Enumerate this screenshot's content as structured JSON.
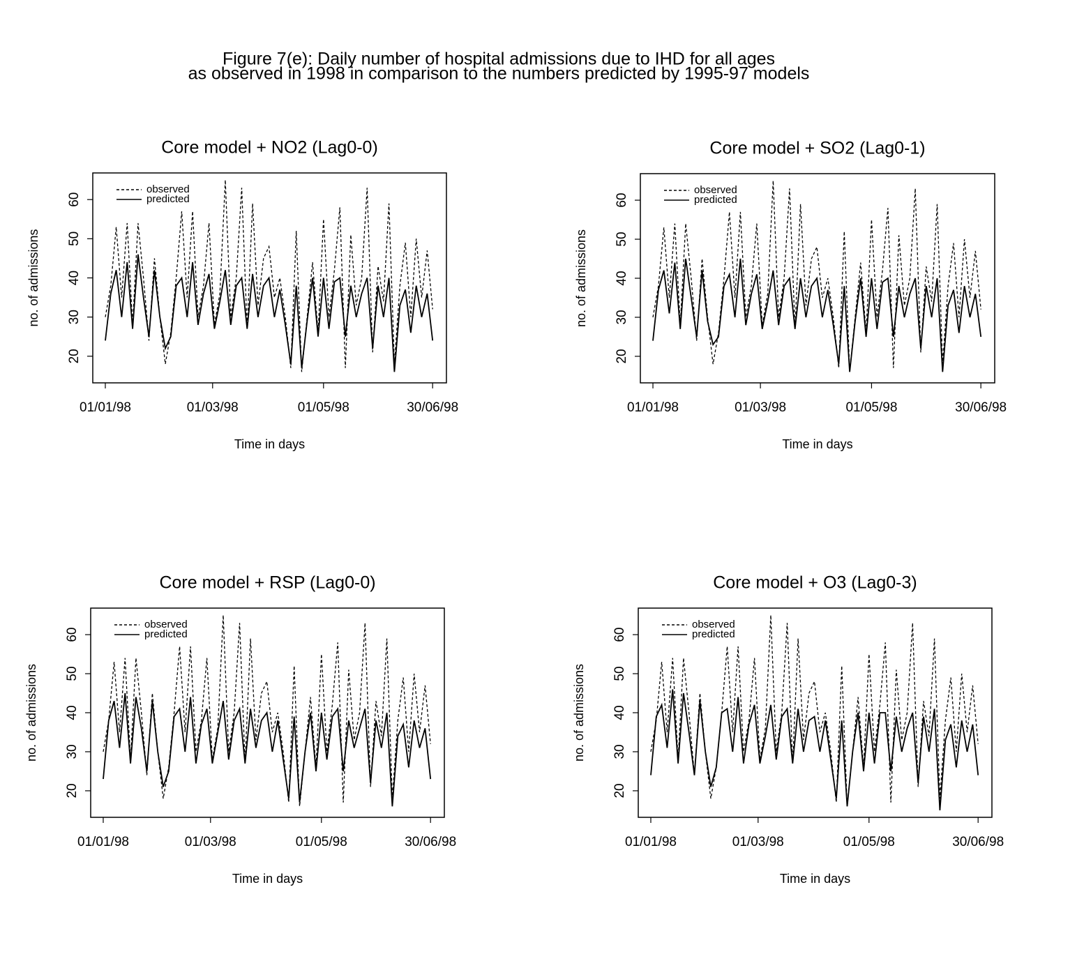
{
  "figure_title": [
    "Figure 7(e): Daily number of hospital admissions due to IHD for all ages",
    "as observed in 1998 in comparison to the numbers predicted by 1995-97 models"
  ],
  "chart_data": [
    {
      "type": "line",
      "title": "Core model + NO2 (Lag0-0)",
      "xlabel": "Time in days",
      "ylabel": "no. of admissions",
      "x": [
        0,
        3,
        6,
        9,
        12,
        15,
        18,
        21,
        24,
        27,
        30,
        33,
        36,
        39,
        42,
        45,
        48,
        51,
        54,
        57,
        60,
        63,
        66,
        69,
        72,
        75,
        78,
        81,
        84,
        87,
        90,
        93,
        96,
        99,
        102,
        105,
        108,
        111,
        114,
        117,
        120,
        123,
        126,
        129,
        132,
        135,
        138,
        141,
        144,
        147,
        150,
        153,
        156,
        159,
        162,
        165,
        168,
        171,
        174,
        177,
        180
      ],
      "series": [
        {
          "name": "observed",
          "color": "#000000",
          "line_style": "dashed",
          "values": [
            30,
            38,
            53,
            35,
            54,
            28,
            54,
            40,
            24,
            45,
            30,
            18,
            26,
            40,
            57,
            35,
            57,
            30,
            38,
            54,
            28,
            36,
            65,
            30,
            40,
            63,
            27,
            59,
            33,
            45,
            48,
            35,
            40,
            30,
            17,
            52,
            16,
            30,
            44,
            26,
            55,
            30,
            42,
            58,
            17,
            51,
            33,
            40,
            63,
            21,
            43,
            34,
            59,
            18,
            38,
            49,
            30,
            50,
            35,
            47,
            32
          ]
        },
        {
          "name": "predicted",
          "color": "#000000",
          "line_style": "solid",
          "values": [
            24,
            36,
            42,
            30,
            44,
            27,
            46,
            35,
            25,
            42,
            30,
            22,
            25,
            38,
            40,
            30,
            44,
            28,
            36,
            41,
            27,
            34,
            42,
            28,
            38,
            40,
            27,
            41,
            30,
            38,
            40,
            30,
            37,
            28,
            18,
            38,
            17,
            29,
            40,
            25,
            40,
            27,
            39,
            40,
            25,
            38,
            30,
            36,
            40,
            22,
            38,
            30,
            40,
            16,
            33,
            37,
            26,
            38,
            30,
            36,
            24
          ]
        }
      ],
      "xlim": [
        -6.9,
        187.6
      ],
      "ylim": [
        13.2,
        66.8
      ],
      "yticks": [
        20,
        30,
        40,
        50,
        60
      ],
      "xticks": [
        {
          "value": 0,
          "label": "01/01/98"
        },
        {
          "value": 59,
          "label": "01/03/98"
        },
        {
          "value": 120,
          "label": "01/05/98"
        },
        {
          "value": 180,
          "label": "30/06/98"
        }
      ],
      "legend": "upper left"
    },
    {
      "type": "line",
      "title": "Core model + SO2 (Lag0-1)",
      "xlabel": "Time in days",
      "ylabel": "no. of admissions",
      "x": [
        0,
        3,
        6,
        9,
        12,
        15,
        18,
        21,
        24,
        27,
        30,
        33,
        36,
        39,
        42,
        45,
        48,
        51,
        54,
        57,
        60,
        63,
        66,
        69,
        72,
        75,
        78,
        81,
        84,
        87,
        90,
        93,
        96,
        99,
        102,
        105,
        108,
        111,
        114,
        117,
        120,
        123,
        126,
        129,
        132,
        135,
        138,
        141,
        144,
        147,
        150,
        153,
        156,
        159,
        162,
        165,
        168,
        171,
        174,
        177,
        180
      ],
      "series": [
        {
          "name": "observed",
          "color": "#000000",
          "line_style": "dashed",
          "values": [
            30,
            38,
            53,
            35,
            54,
            28,
            54,
            40,
            24,
            45,
            30,
            18,
            26,
            40,
            57,
            35,
            57,
            30,
            38,
            54,
            28,
            36,
            65,
            30,
            40,
            63,
            27,
            59,
            33,
            45,
            48,
            35,
            40,
            30,
            17,
            52,
            16,
            30,
            44,
            26,
            55,
            30,
            42,
            58,
            17,
            51,
            33,
            40,
            63,
            21,
            43,
            34,
            59,
            18,
            38,
            49,
            30,
            50,
            35,
            47,
            32
          ]
        },
        {
          "name": "predicted",
          "color": "#000000",
          "line_style": "solid",
          "values": [
            24,
            37,
            42,
            31,
            44,
            27,
            45,
            35,
            25,
            42,
            29,
            23,
            25,
            38,
            41,
            30,
            45,
            28,
            36,
            41,
            27,
            34,
            42,
            28,
            38,
            40,
            27,
            40,
            30,
            38,
            40,
            30,
            37,
            28,
            18,
            38,
            16,
            29,
            40,
            25,
            40,
            27,
            39,
            40,
            25,
            38,
            30,
            36,
            40,
            22,
            38,
            30,
            40,
            16,
            33,
            37,
            26,
            38,
            30,
            36,
            25
          ]
        }
      ],
      "xlim": [
        -6.9,
        187.6
      ],
      "ylim": [
        13.2,
        66.8
      ],
      "yticks": [
        20,
        30,
        40,
        50,
        60
      ],
      "xticks": [
        {
          "value": 0,
          "label": "01/01/98"
        },
        {
          "value": 59,
          "label": "01/03/98"
        },
        {
          "value": 120,
          "label": "01/05/98"
        },
        {
          "value": 180,
          "label": "30/06/98"
        }
      ],
      "legend": "upper left"
    },
    {
      "type": "line",
      "title": "Core model + RSP (Lag0-0)",
      "xlabel": "Time in days",
      "ylabel": "no. of admissions",
      "x": [
        0,
        3,
        6,
        9,
        12,
        15,
        18,
        21,
        24,
        27,
        30,
        33,
        36,
        39,
        42,
        45,
        48,
        51,
        54,
        57,
        60,
        63,
        66,
        69,
        72,
        75,
        78,
        81,
        84,
        87,
        90,
        93,
        96,
        99,
        102,
        105,
        108,
        111,
        114,
        117,
        120,
        123,
        126,
        129,
        132,
        135,
        138,
        141,
        144,
        147,
        150,
        153,
        156,
        159,
        162,
        165,
        168,
        171,
        174,
        177,
        180
      ],
      "series": [
        {
          "name": "observed",
          "color": "#000000",
          "line_style": "dashed",
          "values": [
            30,
            38,
            53,
            35,
            54,
            28,
            54,
            40,
            24,
            45,
            30,
            18,
            26,
            40,
            57,
            35,
            57,
            30,
            38,
            54,
            28,
            36,
            65,
            30,
            40,
            63,
            27,
            59,
            33,
            45,
            48,
            35,
            40,
            30,
            17,
            52,
            16,
            30,
            44,
            26,
            55,
            30,
            42,
            58,
            17,
            51,
            33,
            40,
            63,
            21,
            43,
            34,
            59,
            18,
            38,
            49,
            30,
            50,
            35,
            47,
            32
          ]
        },
        {
          "name": "predicted",
          "color": "#000000",
          "line_style": "solid",
          "values": [
            23,
            38,
            43,
            31,
            45,
            27,
            44,
            36,
            25,
            43,
            30,
            21,
            25,
            39,
            41,
            30,
            44,
            27,
            37,
            41,
            27,
            35,
            43,
            28,
            38,
            41,
            27,
            41,
            31,
            38,
            40,
            30,
            38,
            28,
            18,
            39,
            17,
            30,
            40,
            25,
            40,
            28,
            39,
            41,
            25,
            38,
            31,
            36,
            41,
            22,
            38,
            31,
            40,
            16,
            34,
            37,
            26,
            38,
            31,
            36,
            23
          ]
        }
      ],
      "xlim": [
        -6.9,
        187.6
      ],
      "ylim": [
        13.2,
        66.8
      ],
      "yticks": [
        20,
        30,
        40,
        50,
        60
      ],
      "xticks": [
        {
          "value": 0,
          "label": "01/01/98"
        },
        {
          "value": 59,
          "label": "01/03/98"
        },
        {
          "value": 120,
          "label": "01/05/98"
        },
        {
          "value": 180,
          "label": "30/06/98"
        }
      ],
      "legend": "upper left"
    },
    {
      "type": "line",
      "title": "Core model + O3 (Lag0-3)",
      "xlabel": "Time in days",
      "ylabel": "no. of admissions",
      "x": [
        0,
        3,
        6,
        9,
        12,
        15,
        18,
        21,
        24,
        27,
        30,
        33,
        36,
        39,
        42,
        45,
        48,
        51,
        54,
        57,
        60,
        63,
        66,
        69,
        72,
        75,
        78,
        81,
        84,
        87,
        90,
        93,
        96,
        99,
        102,
        105,
        108,
        111,
        114,
        117,
        120,
        123,
        126,
        129,
        132,
        135,
        138,
        141,
        144,
        147,
        150,
        153,
        156,
        159,
        162,
        165,
        168,
        171,
        174,
        177,
        180
      ],
      "series": [
        {
          "name": "observed",
          "color": "#000000",
          "line_style": "dashed",
          "values": [
            30,
            38,
            53,
            35,
            54,
            28,
            54,
            40,
            24,
            45,
            30,
            18,
            26,
            40,
            57,
            35,
            57,
            30,
            38,
            54,
            28,
            36,
            65,
            30,
            40,
            63,
            27,
            59,
            33,
            45,
            48,
            35,
            40,
            30,
            17,
            52,
            16,
            30,
            44,
            26,
            55,
            30,
            42,
            58,
            17,
            51,
            33,
            40,
            63,
            21,
            43,
            34,
            59,
            18,
            38,
            49,
            30,
            50,
            35,
            47,
            32
          ]
        },
        {
          "name": "predicted",
          "color": "#000000",
          "line_style": "solid",
          "values": [
            24,
            39,
            42,
            31,
            46,
            27,
            45,
            35,
            24,
            43,
            30,
            21,
            26,
            40,
            41,
            30,
            44,
            27,
            37,
            42,
            27,
            34,
            42,
            28,
            39,
            41,
            27,
            41,
            30,
            38,
            39,
            30,
            38,
            28,
            18,
            38,
            16,
            30,
            40,
            25,
            40,
            27,
            40,
            40,
            25,
            39,
            30,
            36,
            40,
            22,
            39,
            30,
            41,
            15,
            33,
            37,
            26,
            38,
            30,
            37,
            24
          ]
        }
      ],
      "xlim": [
        -6.9,
        187.6
      ],
      "ylim": [
        13.2,
        66.8
      ],
      "yticks": [
        20,
        30,
        40,
        50,
        60
      ],
      "xticks": [
        {
          "value": 0,
          "label": "01/01/98"
        },
        {
          "value": 59,
          "label": "01/03/98"
        },
        {
          "value": 120,
          "label": "01/05/98"
        },
        {
          "value": 180,
          "label": "30/06/98"
        }
      ],
      "legend": "upper left"
    }
  ]
}
